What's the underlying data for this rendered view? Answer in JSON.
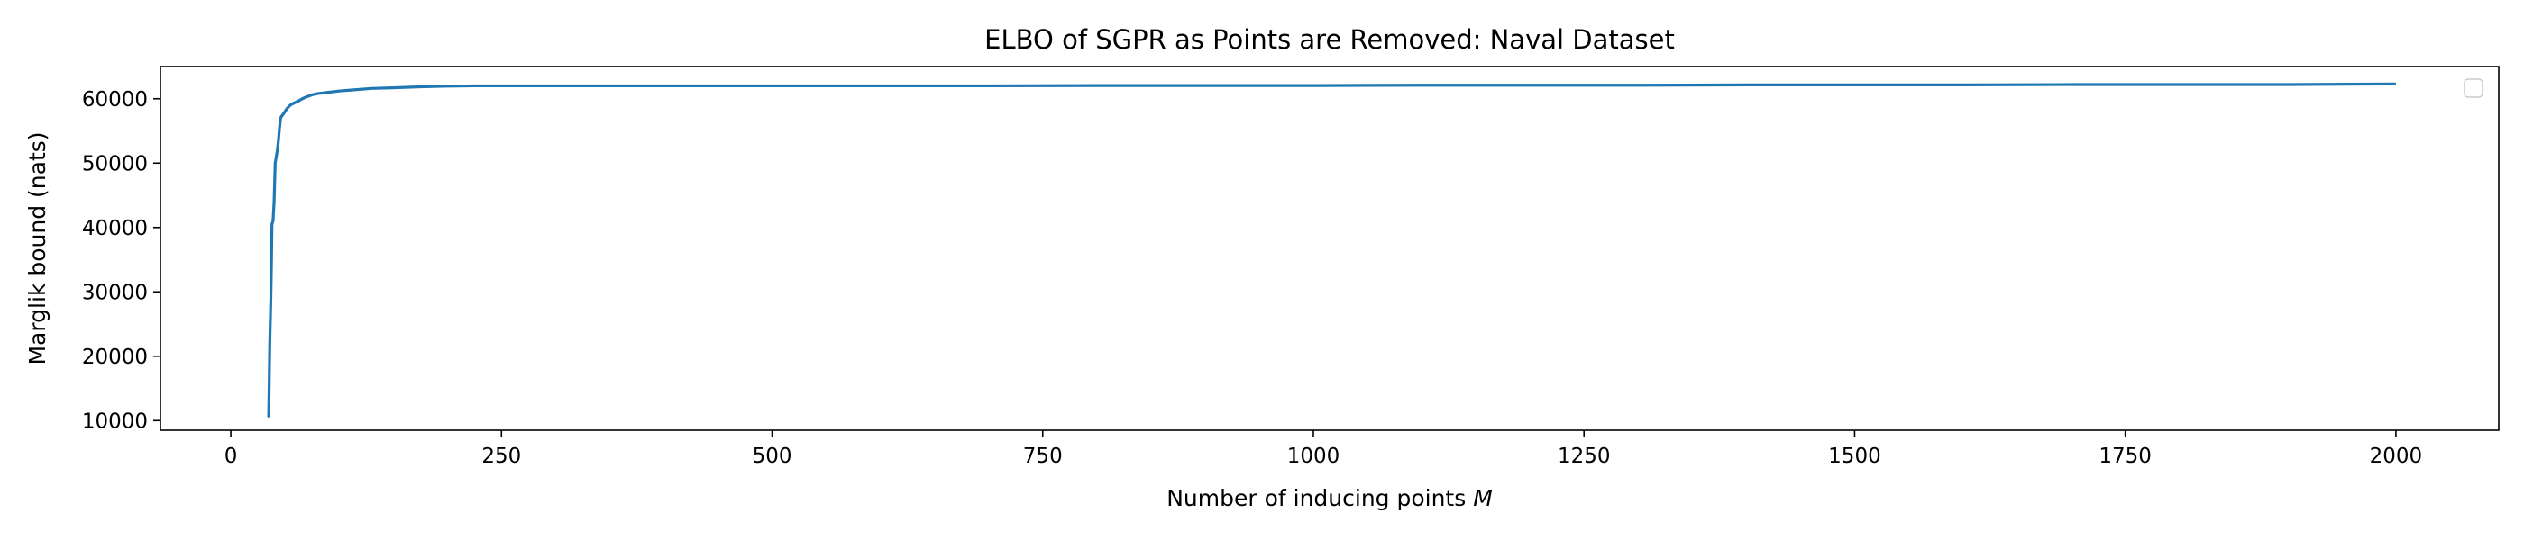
{
  "chart_data": {
    "type": "line",
    "title": "ELBO of SGPR as Points are Removed: Naval Dataset",
    "xlabel": "Number of inducing points ",
    "xlabel_var": "M",
    "ylabel": "Marglik bound (nats)",
    "xlim": [
      -65,
      2095
    ],
    "ylim": [
      8500,
      65000
    ],
    "xticks": [
      0,
      250,
      500,
      750,
      1000,
      1250,
      1500,
      1750,
      2000
    ],
    "yticks": [
      10000,
      20000,
      30000,
      40000,
      50000,
      60000
    ],
    "legend": "top-right (empty)",
    "grid": false,
    "series": [
      {
        "color": "#1f77b4",
        "x": [
          35,
          35.5,
          36,
          37,
          37.5,
          38,
          39,
          40,
          41,
          42,
          43,
          44,
          45,
          46,
          47,
          48,
          50,
          52,
          55,
          58,
          62,
          66,
          70,
          75,
          80,
          90,
          100,
          115,
          130,
          150,
          175,
          200,
          225,
          250,
          300,
          400,
          500,
          600,
          700,
          800,
          900,
          1000,
          1100,
          1200,
          1300,
          1400,
          1500,
          1600,
          1700,
          1800,
          1900,
          2000
        ],
        "y": [
          10500,
          16000,
          22000,
          29000,
          34000,
          40500,
          41000,
          44000,
          50000,
          51000,
          52000,
          53500,
          55500,
          57000,
          57300,
          57500,
          58000,
          58500,
          59000,
          59300,
          59600,
          60000,
          60300,
          60600,
          60800,
          61000,
          61200,
          61400,
          61600,
          61700,
          61850,
          61950,
          62000,
          62000,
          62000,
          62000,
          62000,
          62000,
          62000,
          62050,
          62050,
          62050,
          62100,
          62100,
          62100,
          62150,
          62150,
          62150,
          62200,
          62200,
          62200,
          62300
        ]
      }
    ]
  }
}
